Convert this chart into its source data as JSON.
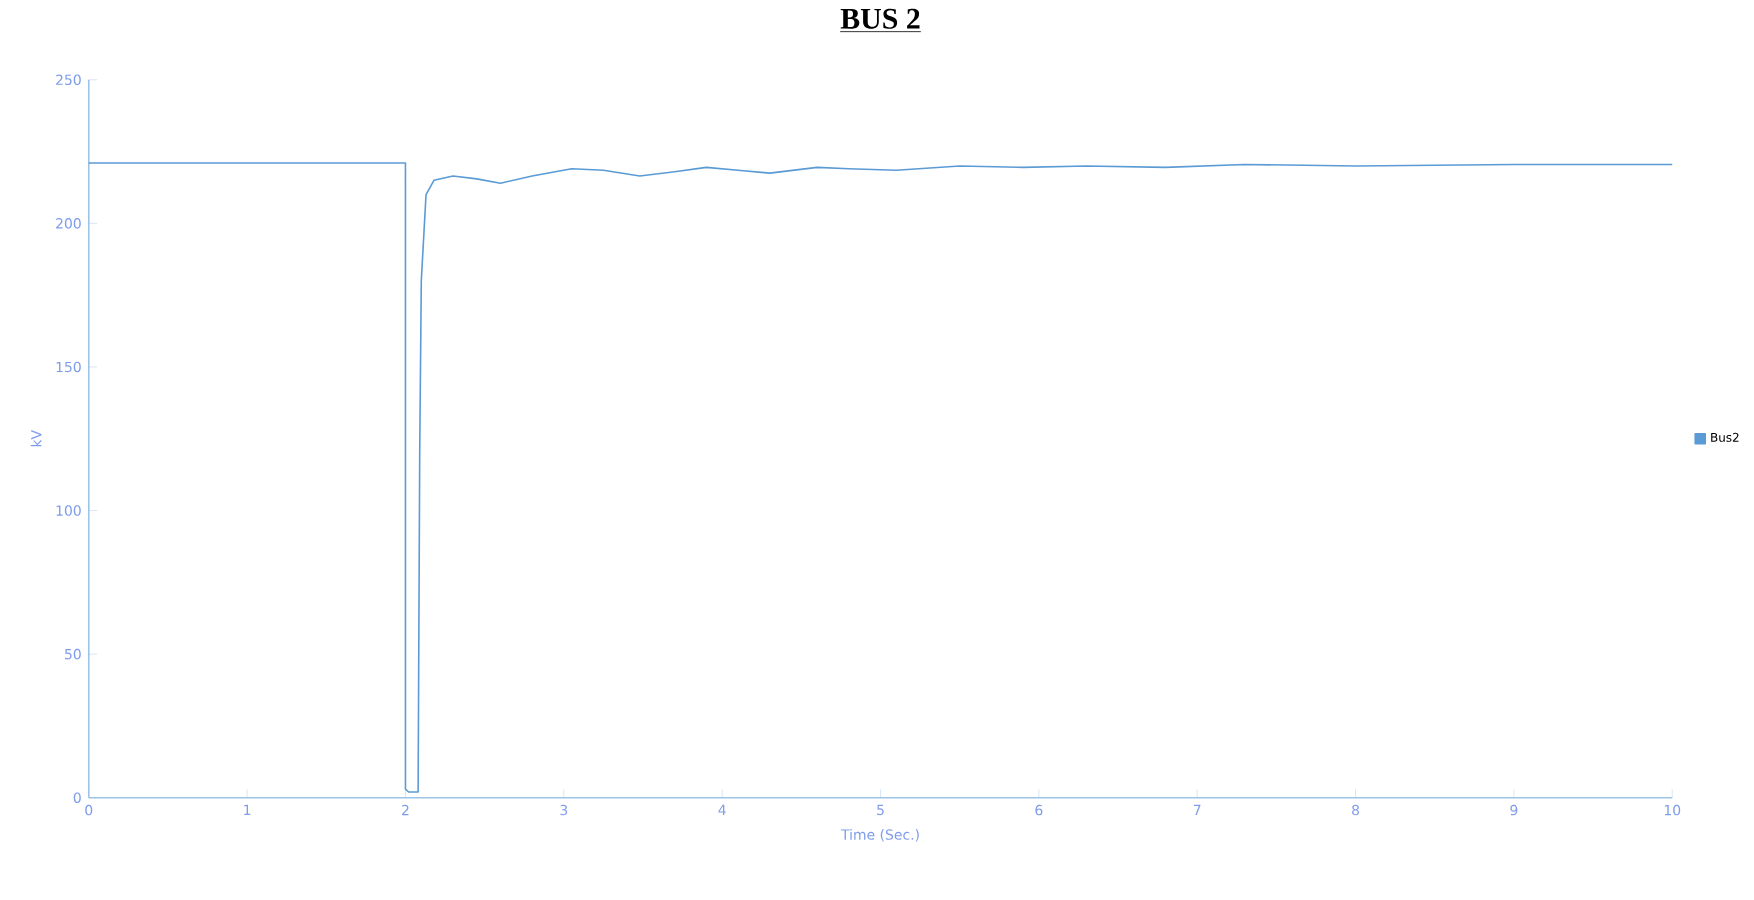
{
  "chart_data": {
    "type": "line",
    "title": "BUS 2",
    "xlabel": "Time (Sec.)",
    "ylabel": "kV",
    "xlim": [
      0,
      10
    ],
    "ylim": [
      0,
      250
    ],
    "xticks": [
      0,
      1,
      2,
      3,
      4,
      5,
      6,
      7,
      8,
      9,
      10
    ],
    "yticks": [
      0,
      50,
      100,
      150,
      200,
      250
    ],
    "grid": false,
    "legend": "right",
    "marker": "none",
    "line_style": "solid",
    "series": [
      {
        "name": "Bus2",
        "color": "#5b9bd5",
        "x": [
          0,
          2.0,
          2.0,
          2.02,
          2.08,
          2.09,
          2.1,
          2.13,
          2.18,
          2.3,
          2.45,
          2.6,
          2.8,
          3.05,
          3.25,
          3.48,
          3.7,
          3.9,
          4.1,
          4.3,
          4.6,
          4.8,
          5.1,
          5.5,
          5.9,
          6.3,
          6.8,
          7.3,
          8,
          9,
          10
        ],
        "values": [
          221,
          221,
          3,
          2,
          2,
          120,
          180,
          210,
          215,
          216.5,
          215.5,
          214,
          216.5,
          219,
          218.5,
          216.5,
          218,
          219.5,
          218.5,
          217.5,
          219.5,
          219,
          218.5,
          220,
          219.5,
          220,
          219.5,
          220.5,
          220,
          220.5,
          220.5
        ]
      }
    ]
  }
}
